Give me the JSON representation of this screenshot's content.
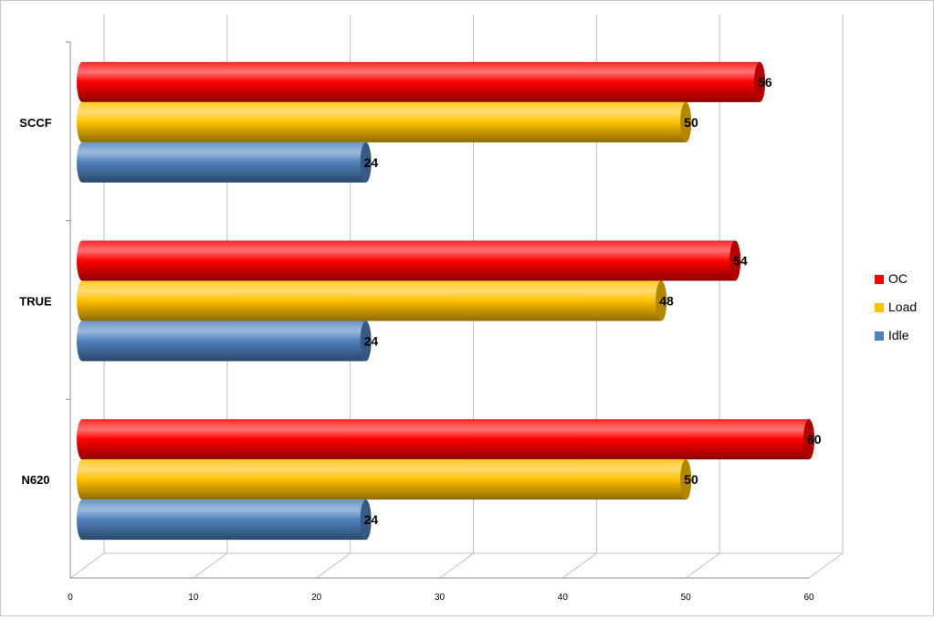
{
  "chart_data": {
    "type": "bar",
    "orientation": "horizontal",
    "style": "3d-cylinder",
    "categories": [
      "SCCF",
      "TRUE",
      "N620"
    ],
    "series": [
      {
        "name": "OC",
        "color": "#ff0000",
        "values": [
          56,
          54,
          60
        ]
      },
      {
        "name": "Load",
        "color": "#ffc000",
        "values": [
          50,
          48,
          50
        ]
      },
      {
        "name": "Idle",
        "color": "#4f81bd",
        "values": [
          24,
          24,
          24
        ]
      }
    ],
    "xlim": [
      0,
      60
    ],
    "xticks": [
      0,
      10,
      20,
      30,
      40,
      50,
      60
    ],
    "grid": true,
    "legend_position": "right",
    "title": "",
    "xlabel": "",
    "ylabel": ""
  }
}
